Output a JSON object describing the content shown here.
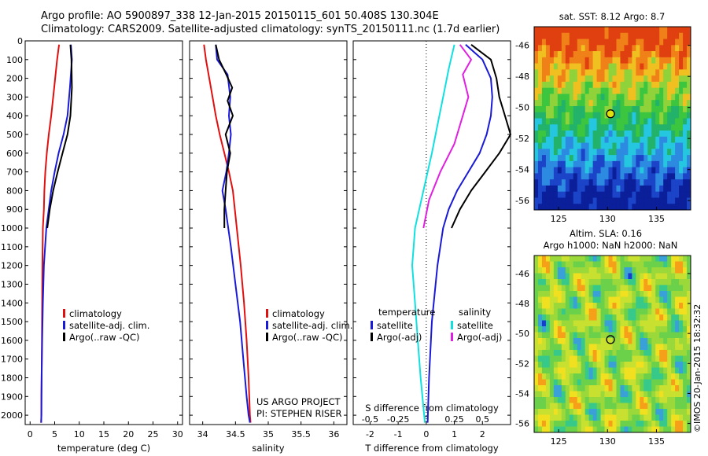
{
  "header": {
    "line1": "Argo profile: AO 5900897_338 12-Jan-2015 20150115_601 50.408S 130.304E",
    "line2": "Climatology: CARS2009. Satellite-adjusted climatology: synTS_20150111.nc (1.7d earlier)"
  },
  "colors": {
    "red": "#e01010",
    "blue": "#1a1ad6",
    "black": "#000000",
    "cyan": "#10e0e0",
    "magenta": "#e020e0"
  },
  "credit": "©IMOS 20-Jan-2015 18:32:32",
  "chart_data": [
    {
      "type": "line",
      "id": "temperature",
      "xlabel": "temperature (deg C)",
      "ylabel": "",
      "xlim": [
        -1,
        31
      ],
      "ylim": [
        2050,
        0
      ],
      "xticks": [
        "0",
        "5",
        "10",
        "15",
        "20",
        "25",
        "30"
      ],
      "yticks": [
        "0",
        "100",
        "200",
        "300",
        "400",
        "500",
        "600",
        "700",
        "800",
        "900",
        "1000",
        "1100",
        "1200",
        "1300",
        "1400",
        "1500",
        "1600",
        "1700",
        "1800",
        "1900",
        "2000"
      ],
      "legend": [
        "climatology",
        "satellite-adj. clim.",
        "Argo(..raw -QC)"
      ],
      "series": [
        {
          "name": "climatology",
          "color": "red",
          "x": [
            5.9,
            5.5,
            4.9,
            4.3,
            3.8,
            3.4,
            3.1,
            2.9,
            2.8,
            2.6,
            2.5,
            2.45,
            2.4,
            2.35,
            2.3,
            2.3,
            2.25
          ],
          "y": [
            20,
            100,
            250,
            400,
            500,
            600,
            700,
            800,
            900,
            1000,
            1200,
            1400,
            1600,
            1800,
            1900,
            2000,
            2040
          ]
        },
        {
          "name": "satellite-adj. clim.",
          "color": "blue",
          "x": [
            8.3,
            8.5,
            8.1,
            7.6,
            6.8,
            5.8,
            5.0,
            4.3,
            3.8,
            3.3,
            2.8,
            2.6,
            2.45,
            2.35,
            2.3,
            2.25
          ],
          "y": [
            20,
            100,
            250,
            400,
            500,
            600,
            700,
            800,
            900,
            1000,
            1200,
            1400,
            1600,
            1800,
            2000,
            2040
          ]
        },
        {
          "name": "Argo(..raw -QC)",
          "color": "black",
          "x": [
            8.2,
            8.4,
            8.5,
            8.2,
            7.6,
            6.6,
            5.6,
            4.7,
            4.0,
            3.5
          ],
          "y": [
            20,
            100,
            250,
            400,
            500,
            600,
            700,
            800,
            900,
            1000
          ]
        }
      ]
    },
    {
      "type": "line",
      "id": "salinity",
      "xlabel": "salinity",
      "xlim": [
        33.8,
        36.2
      ],
      "ylim": [
        2050,
        0
      ],
      "xticks": [
        "34",
        "34.5",
        "35",
        "35.5",
        "36"
      ],
      "legend": [
        "climatology",
        "satellite-adj. clim.",
        "Argo(..raw -QC)"
      ],
      "series": [
        {
          "name": "climatology",
          "color": "red",
          "x": [
            34.02,
            34.05,
            34.1,
            34.15,
            34.2,
            34.26,
            34.33,
            34.4,
            34.46,
            34.52,
            34.58,
            34.63,
            34.67,
            34.7,
            34.72,
            34.73
          ],
          "y": [
            20,
            100,
            200,
            300,
            400,
            500,
            600,
            700,
            800,
            1000,
            1200,
            1400,
            1600,
            1800,
            2000,
            2040
          ]
        },
        {
          "name": "satellite-adj. clim.",
          "color": "blue",
          "x": [
            34.2,
            34.22,
            34.38,
            34.42,
            34.4,
            34.43,
            34.4,
            34.36,
            34.3,
            34.35,
            34.43,
            34.5,
            34.57,
            34.62,
            34.67,
            34.7,
            34.72
          ],
          "y": [
            20,
            100,
            180,
            300,
            400,
            500,
            600,
            700,
            800,
            900,
            1100,
            1300,
            1500,
            1700,
            1900,
            2000,
            2040
          ]
        },
        {
          "name": "Argo(..raw -QC)",
          "color": "black",
          "x": [
            34.2,
            34.25,
            34.36,
            34.45,
            34.38,
            34.46,
            34.35,
            34.42,
            34.37,
            34.35,
            34.33,
            34.33
          ],
          "y": [
            20,
            100,
            180,
            250,
            320,
            400,
            500,
            600,
            700,
            800,
            900,
            1000
          ]
        }
      ],
      "annotations": [
        "US ARGO PROJECT",
        "PI: STEPHEN RISER"
      ]
    },
    {
      "type": "line",
      "id": "difference",
      "xlabel": "T difference from climatology",
      "xlabel_top": "S difference from climatology",
      "xlim": [
        -2.6,
        3.0
      ],
      "ylim": [
        2050,
        0
      ],
      "xticks": [
        "-2",
        "-1",
        "0",
        "1",
        "2"
      ],
      "xticks_top": [
        "-0.5",
        "-0.25",
        "0",
        "0.25",
        "0.5"
      ],
      "legend_titles": [
        "temperature",
        "salinity"
      ],
      "legend": [
        "satellite",
        "Argo(-adj)",
        "satellite",
        "Argo(-adj)"
      ],
      "series": [
        {
          "name": "temperature satellite",
          "color": "blue",
          "x": [
            1.4,
            2.0,
            2.3,
            2.35,
            2.3,
            2.15,
            1.9,
            1.5,
            1.1,
            0.8,
            0.6,
            0.4,
            0.2,
            0.1,
            0.05
          ],
          "y": [
            20,
            100,
            200,
            300,
            400,
            500,
            600,
            700,
            800,
            900,
            1000,
            1200,
            1500,
            1800,
            2040
          ]
        },
        {
          "name": "temperature Argo(-adj)",
          "color": "black",
          "x": [
            1.6,
            2.3,
            2.5,
            2.6,
            2.8,
            3.0,
            2.6,
            2.1,
            1.6,
            1.2,
            0.9
          ],
          "y": [
            20,
            100,
            200,
            300,
            400,
            500,
            600,
            700,
            800,
            900,
            1000
          ]
        },
        {
          "name": "salinity satellite",
          "color": "cyan",
          "x": [
            1.0,
            0.8,
            0.6,
            0.4,
            0.2,
            -0.1,
            -0.4,
            -0.5,
            -0.4,
            -0.3,
            -0.2,
            -0.05
          ],
          "y": [
            20,
            150,
            300,
            450,
            600,
            800,
            1000,
            1200,
            1400,
            1600,
            1800,
            2040
          ]
        },
        {
          "name": "salinity Argo(-adj)",
          "color": "magenta",
          "x": [
            1.2,
            1.6,
            1.3,
            1.5,
            1.3,
            1.0,
            0.5,
            0.1,
            -0.1
          ],
          "y": [
            20,
            100,
            180,
            300,
            400,
            550,
            700,
            850,
            1000
          ]
        }
      ]
    },
    {
      "type": "heatmap",
      "id": "sst-map",
      "title": "sat. SST: 8.12 Argo: 8.7",
      "xticks": [
        "125",
        "130",
        "135"
      ],
      "yticks": [
        "-46",
        "-48",
        "-50",
        "-52",
        "-54",
        "-56"
      ],
      "marker": {
        "lon": 130.304,
        "lat": -50.408
      }
    },
    {
      "type": "heatmap",
      "id": "sla-map",
      "title": "Altim. SLA: 0.16",
      "subtitle": "Argo h1000: NaN h2000: NaN",
      "xticks": [
        "125",
        "130",
        "135"
      ],
      "yticks": [
        "-46",
        "-48",
        "-50",
        "-52",
        "-54",
        "-56"
      ],
      "marker": {
        "lon": 130.304,
        "lat": -50.408
      }
    }
  ]
}
